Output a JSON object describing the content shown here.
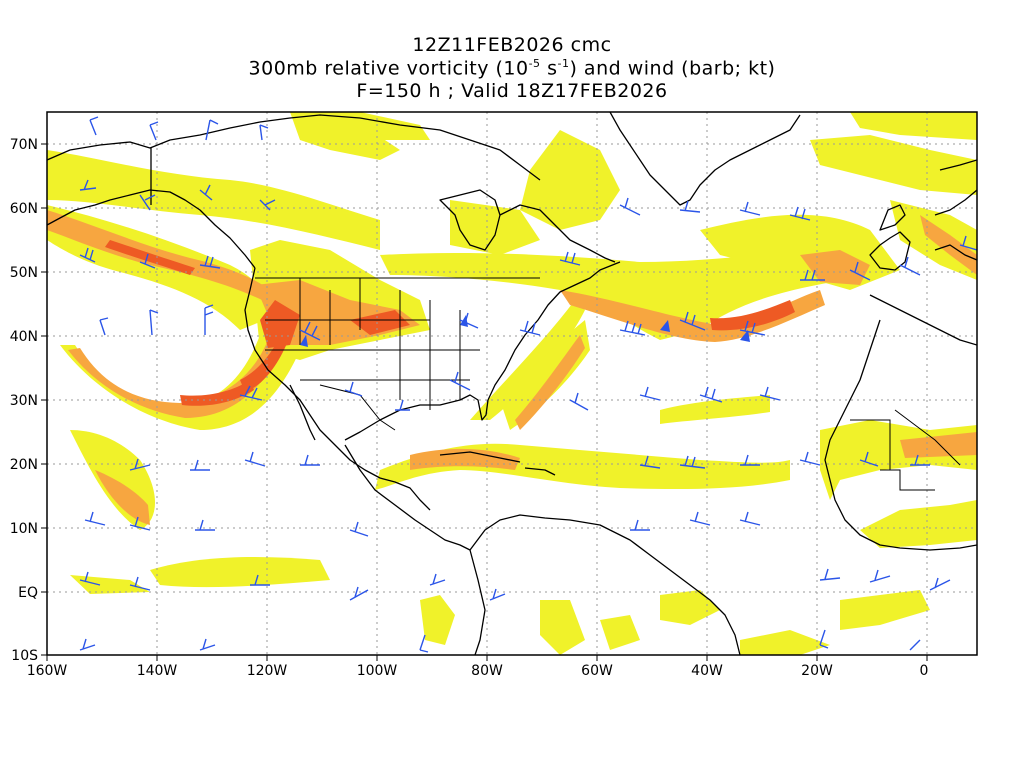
{
  "title": {
    "line1": "12Z11FEB2026 cmc",
    "line2_pre": "300mb relative vorticity (10",
    "line2_exp1": "-5",
    "line2_mid": " s",
    "line2_exp2": "-1",
    "line2_post": ") and wind (barb; kt)",
    "line3": "F=150 h ; Valid 18Z17FEB2026"
  },
  "axes": {
    "x_labels": [
      "160W",
      "140W",
      "120W",
      "100W",
      "80W",
      "60W",
      "40W",
      "20W",
      "0"
    ],
    "y_labels": [
      "70N",
      "60N",
      "50N",
      "40N",
      "30N",
      "20N",
      "10N",
      "EQ",
      "10S"
    ]
  },
  "colors": {
    "light_yellow": "#f2f22e",
    "yellow": "#e8f020",
    "orange_light": "#f7c36a",
    "orange": "#f59a3c",
    "red_orange": "#ee5a24",
    "red": "#e8341c",
    "barb": "#2b55e8",
    "coast": "#000000",
    "grid": "#9a9a9a"
  },
  "icons": [
    "wind-barb-icon"
  ]
}
